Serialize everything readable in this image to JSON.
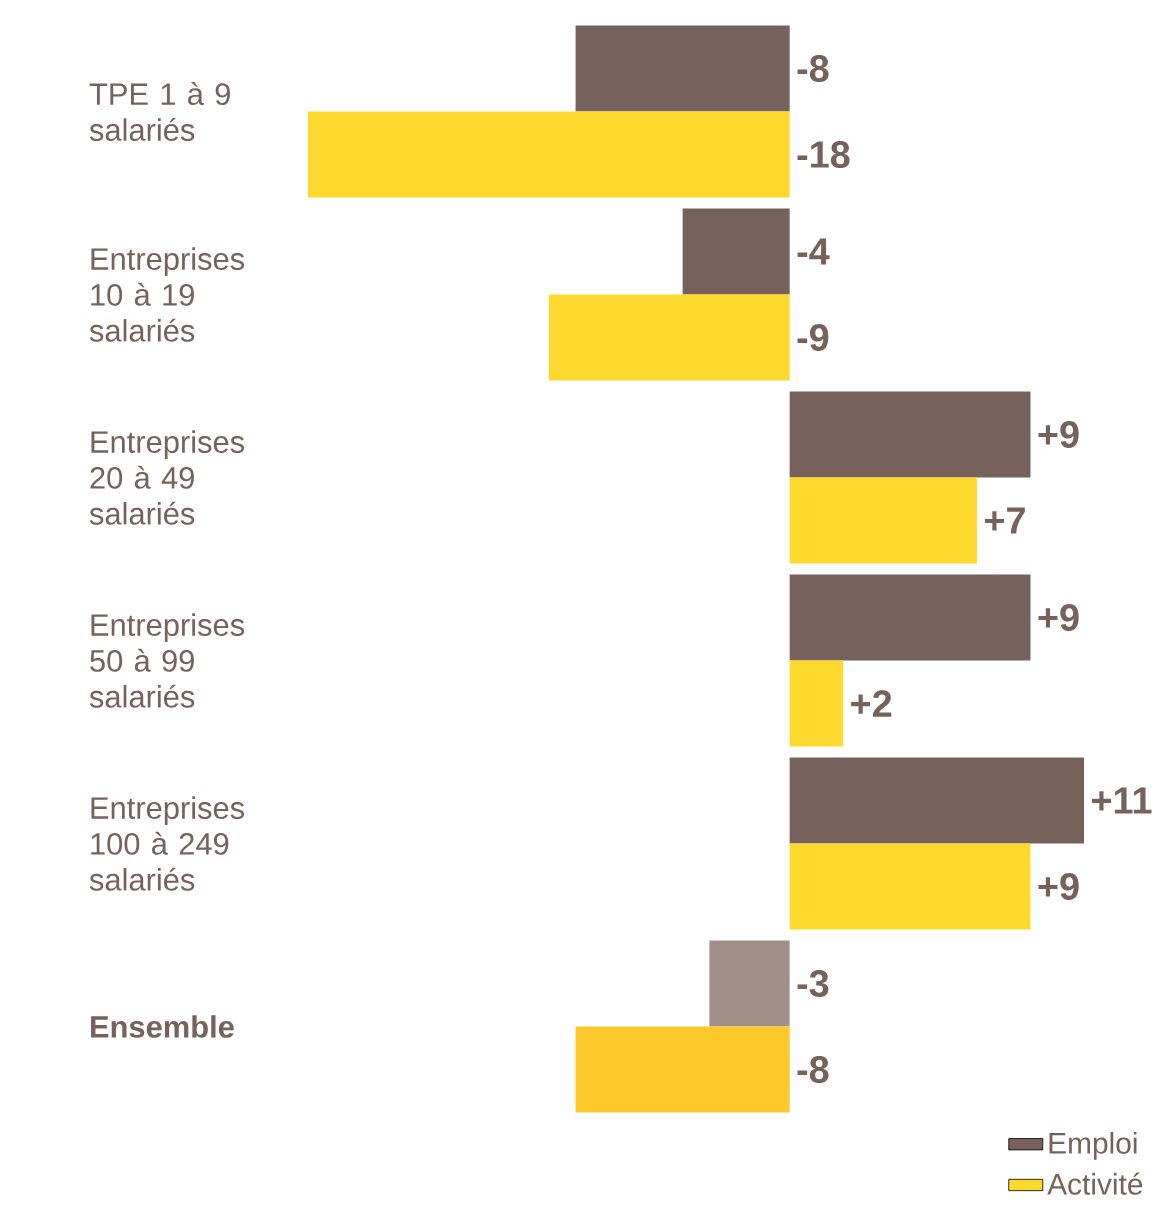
{
  "chart_data": {
    "type": "bar",
    "orientation": "horizontal",
    "legend": "bottom right",
    "categories": [
      "TPE 1 à 9 salariés",
      "Entreprises 10 à 19 salariés",
      "Entreprises 20 à 49 salariés",
      "Entreprises 50 à 99 salariés",
      "Entreprises 100 à 249 salariés",
      "Ensemble"
    ],
    "series": [
      {
        "name": "Emploi",
        "color": "#76625a",
        "colors": [
          "#76625a",
          "#76625a",
          "#76625a",
          "#76625a",
          "#76625a",
          "#a08f87"
        ],
        "values": [
          -8,
          -4,
          9,
          9,
          11,
          -3
        ],
        "value_labels": [
          "-8",
          "-4",
          "+9",
          "+9",
          "+11",
          "-3"
        ]
      },
      {
        "name": "Activité",
        "color": "#fdd92e",
        "colors": [
          "#fdd92e",
          "#fdd92e",
          "#fdd92e",
          "#fdd92e",
          "#fdd92e",
          "#fcc82a"
        ],
        "values": [
          -18,
          -9,
          7,
          2,
          9,
          -8
        ],
        "value_labels": [
          "-18",
          "-9",
          "+7",
          "+2",
          "+9",
          "-8"
        ]
      }
    ]
  }
}
